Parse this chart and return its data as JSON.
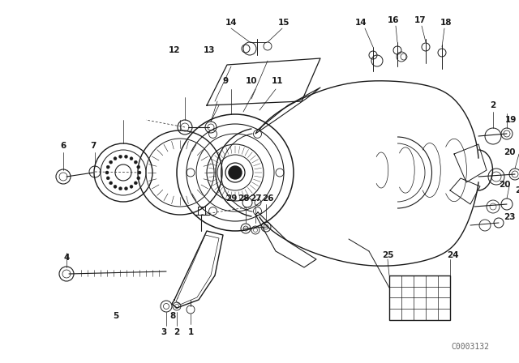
{
  "bg_color": "#ffffff",
  "line_color": "#1a1a1a",
  "figure_width": 6.4,
  "figure_height": 4.48,
  "dpi": 100,
  "watermark": "C0003132",
  "watermark_fontsize": 7,
  "watermark_color": "#666666"
}
